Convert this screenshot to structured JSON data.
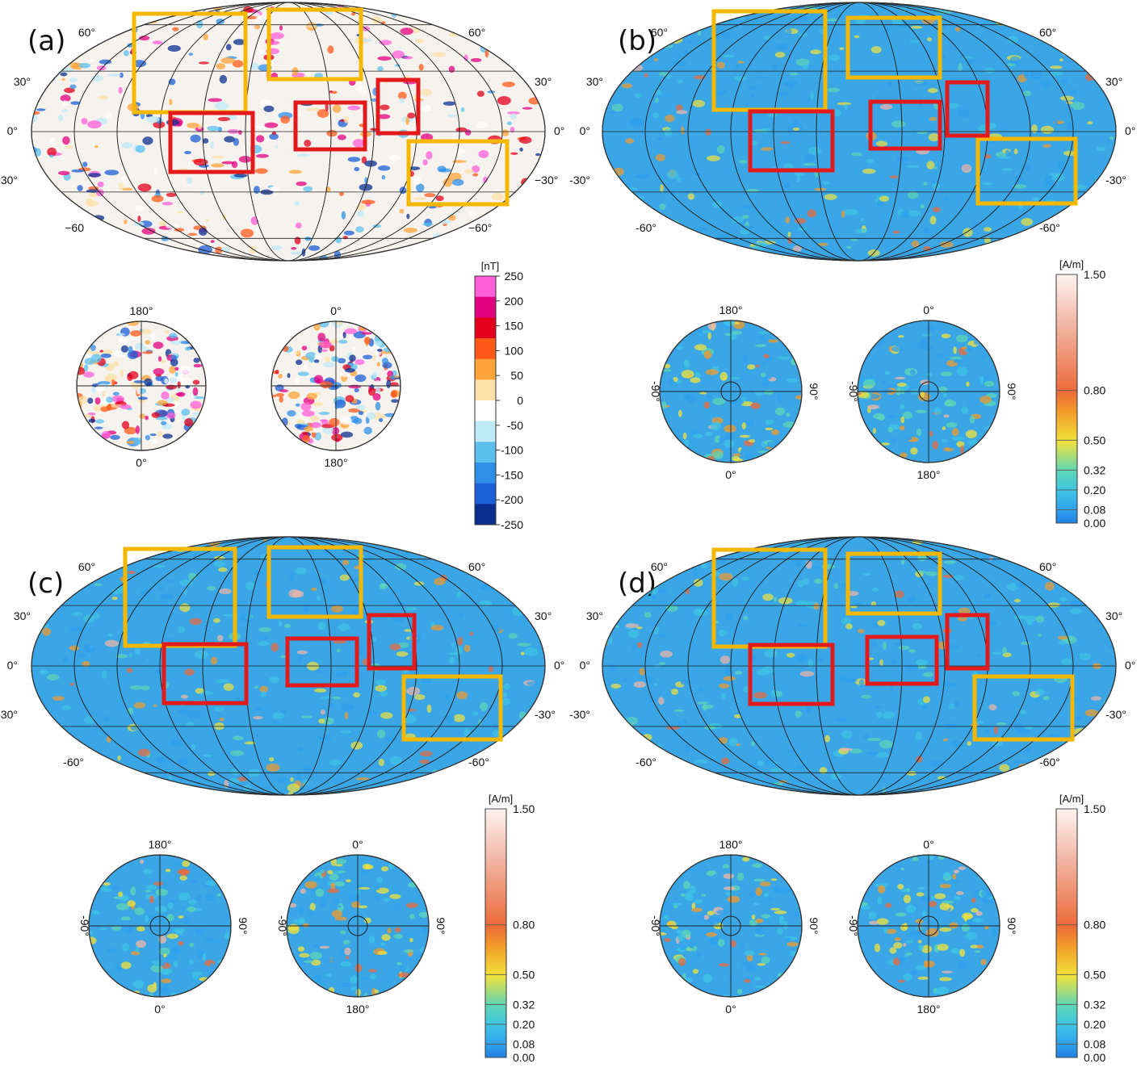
{
  "colors": {
    "orange_box": "#f5b800",
    "red_box": "#e31a1c",
    "ocean_blue": "#3aa6e6",
    "anomaly_bg": "#f6f3ee",
    "grid": "#222222"
  },
  "panels": [
    {
      "id": "a",
      "label": "(a)",
      "type": "anomaly",
      "lat_labels_left": [
        "60°",
        "30°",
        "0°",
        "−30°",
        "−60"
      ],
      "lat_labels_right": [
        "60°",
        "30°",
        "0°",
        "−30°",
        "−60°"
      ],
      "polar_north": {
        "top": "180°",
        "bottom": "0°"
      },
      "polar_south": {
        "top": "0°",
        "bottom": "180°"
      },
      "colorbar": {
        "unit": "[nT]",
        "ticks": [
          "250",
          "200",
          "150",
          "100",
          "50",
          "0",
          "-50",
          "-100",
          "-150",
          "-200",
          "-250"
        ],
        "colors": [
          "#0b2f8f",
          "#1c5fd6",
          "#2f8fe8",
          "#5cc0ef",
          "#bfe9f7",
          "#ffffff",
          "#ffe0a8",
          "#ffa43a",
          "#ff5a1a",
          "#e3001c",
          "#e3007f",
          "#ff5fd8"
        ]
      }
    },
    {
      "id": "b",
      "label": "(b)",
      "type": "magnetization",
      "lat_labels_left": [
        "60°",
        "30°",
        "0°",
        "-30°",
        "-60°"
      ],
      "lat_labels_right": [
        "60°",
        "30°",
        "0°",
        "-30°",
        "-60°"
      ],
      "polar_north": {
        "top": "180°",
        "bottom": "0°",
        "left": "-90°",
        "right": "90°"
      },
      "polar_south": {
        "top": "0°",
        "bottom": "180°",
        "left": "-90°",
        "right": "90°"
      },
      "colorbar": {
        "unit": "[A/m]",
        "ticks": [
          "1.50",
          "0.80",
          "0.50",
          "0.32",
          "0.20",
          "0.08",
          "0.00"
        ],
        "tick_values": [
          1.5,
          0.8,
          0.5,
          0.32,
          0.2,
          0.08,
          0.0
        ]
      }
    },
    {
      "id": "c",
      "label": "(c)",
      "type": "magnetization",
      "lat_labels_left": [
        "60°",
        "30°",
        "0°",
        "-30°",
        "-60°"
      ],
      "lat_labels_right": [
        "60°",
        "30°",
        "0°",
        "-30°",
        "-60°"
      ],
      "polar_north": {
        "top": "180°",
        "bottom": "0°",
        "left": "-90°",
        "right": "90°"
      },
      "polar_south": {
        "top": "0°",
        "bottom": "180°",
        "left": "-90°",
        "right": "90°"
      },
      "colorbar": {
        "unit": "[A/m]",
        "ticks": [
          "1.50",
          "0.80",
          "0.50",
          "0.32",
          "0.20",
          "0.08",
          "0.00"
        ],
        "tick_values": [
          1.5,
          0.8,
          0.5,
          0.32,
          0.2,
          0.08,
          0.0
        ]
      }
    },
    {
      "id": "d",
      "label": "(d)",
      "type": "magnetization",
      "lat_labels_left": [
        "60°",
        "30°",
        "0°",
        "-30°",
        "-60°"
      ],
      "lat_labels_right": [
        "60°",
        "30°",
        "0°",
        "-30°",
        "-60°"
      ],
      "polar_north": {
        "top": "180°",
        "bottom": "0°",
        "left": "-90°",
        "right": "90°"
      },
      "polar_south": {
        "top": "0°",
        "bottom": "180°",
        "left": "-90°",
        "right": "90°"
      },
      "colorbar": {
        "unit": "[A/m]",
        "ticks": [
          "1.50",
          "0.80",
          "0.50",
          "0.32",
          "0.20",
          "0.08",
          "0.00"
        ],
        "tick_values": [
          1.5,
          0.8,
          0.5,
          0.32,
          0.2,
          0.08,
          0.0
        ]
      }
    }
  ]
}
